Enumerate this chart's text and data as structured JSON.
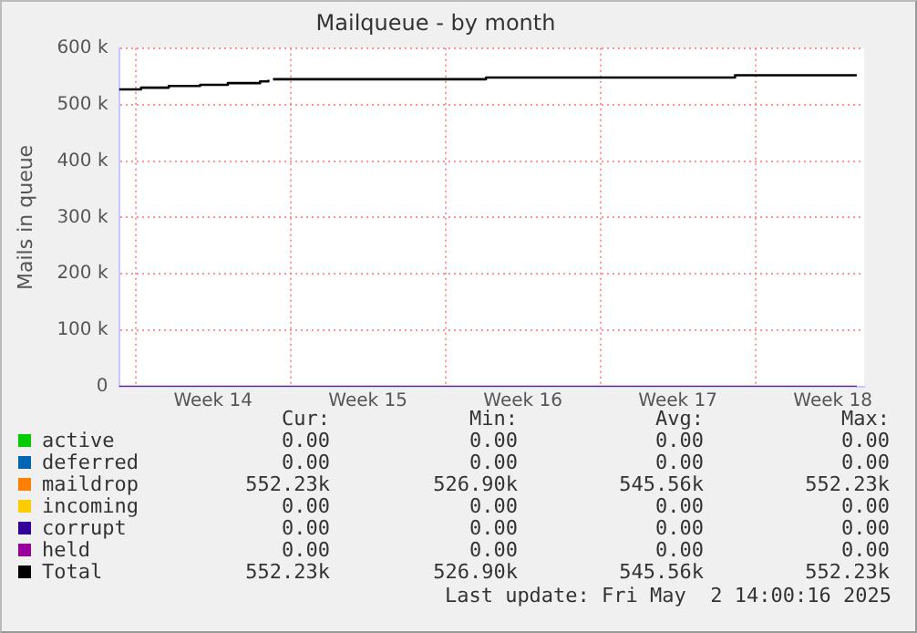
{
  "chart_data": {
    "type": "step",
    "title": "Mailqueue - by month",
    "ylabel": "Mails in queue",
    "xlim": [
      "2025-03-30T06:00",
      "2025-05-02T22:00"
    ],
    "xticks": [
      {
        "value": "2025-03-31T00:00",
        "label": null
      },
      {
        "value": "2025-04-03T12:00",
        "label": "Week 14"
      },
      {
        "value": "2025-04-07T00:00",
        "label": null
      },
      {
        "value": "2025-04-10T12:00",
        "label": "Week 15"
      },
      {
        "value": "2025-04-14T00:00",
        "label": null
      },
      {
        "value": "2025-04-17T12:00",
        "label": "Week 16"
      },
      {
        "value": "2025-04-21T00:00",
        "label": null
      },
      {
        "value": "2025-04-24T12:00",
        "label": "Week 17"
      },
      {
        "value": "2025-04-28T00:00",
        "label": null
      },
      {
        "value": "2025-05-01T12:00",
        "label": "Week 18"
      }
    ],
    "ylim": [
      0,
      600000
    ],
    "yticks": [
      0,
      {
        "value": 100000,
        "label": "100 k"
      },
      {
        "value": 200000,
        "label": "200 k"
      },
      {
        "value": 300000,
        "label": "300 k"
      },
      {
        "value": 400000,
        "label": "400 k"
      },
      {
        "value": 500000,
        "label": "500 k"
      },
      {
        "value": 600000,
        "label": "600 k"
      }
    ],
    "grid": true,
    "legend": "bottom",
    "marker": "none",
    "line_style": "solid",
    "series": [
      {
        "name": "active",
        "color": "#00cc00"
      },
      {
        "name": "deferred",
        "color": "#0066b3"
      },
      {
        "name": "maildrop",
        "color": "#ff8000"
      },
      {
        "name": "incoming",
        "color": "#ffcc00"
      },
      {
        "name": "corrupt",
        "color": "#330099"
      },
      {
        "name": "held",
        "color": "#990099",
        "x": [
          "2025-03-30T06:00",
          "2025-05-02T14:00"
        ],
        "values": [
          0,
          0
        ]
      },
      {
        "name": "Total",
        "color": "#000000",
        "x": [
          "2025-03-30T06:00",
          "2025-03-31T06:00",
          "2025-04-01T12:00",
          "2025-04-02T22:00",
          "2025-04-04T04:00",
          "2025-04-05T15:00",
          "2025-04-06T00:00",
          "2025-04-06T02:00",
          "2025-04-06T05:00",
          "2025-04-15T20:00",
          "2025-04-27T02:00",
          "2025-05-02T14:00"
        ],
        "values": [
          527000,
          530000,
          533000,
          535000,
          538000,
          541000,
          544000,
          null,
          545000,
          548000,
          552000,
          552000
        ]
      }
    ],
    "annotations": [
      "Cur:",
      "Min:",
      "Avg:",
      "Max:",
      "0.00",
      "0.00",
      "0.00",
      "0.00",
      "0.00",
      "0.00",
      "0.00",
      "0.00",
      "552.23k",
      "526.90k",
      "545.56k",
      "552.23k",
      "0.00",
      "0.00",
      "0.00",
      "0.00",
      "0.00",
      "0.00",
      "0.00",
      "0.00",
      "0.00",
      "0.00",
      "0.00",
      "0.00",
      "552.23k",
      "526.90k",
      "545.56k",
      "552.23k",
      "Last update: Fri May  2 14:00:16 2025"
    ]
  }
}
